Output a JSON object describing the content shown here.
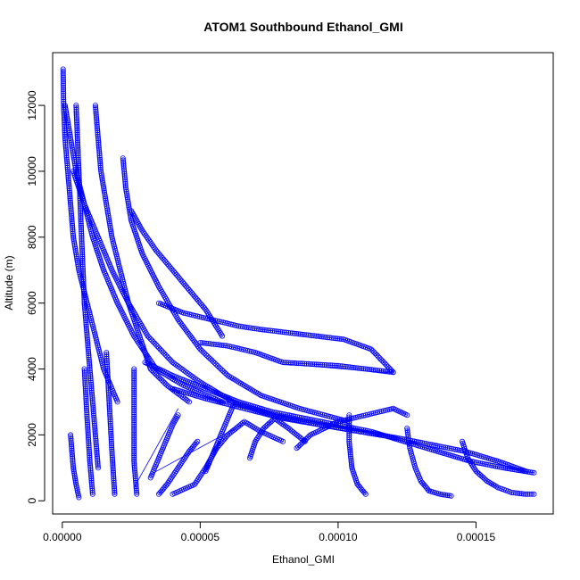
{
  "chart_data": {
    "type": "scatter",
    "title": "ATOM1 Southbound Ethanol_GMI",
    "xlabel": "Ethanol_GMI",
    "ylabel": "Altitude (m)",
    "xlim": [
      -3.5e-06,
      0.000178
    ],
    "ylim": [
      -400,
      13600
    ],
    "x_ticks": [
      0,
      5e-05,
      0.0001,
      0.00015
    ],
    "x_tick_labels": [
      "0.00000",
      "0.00005",
      "0.00010",
      "0.00015"
    ],
    "y_ticks": [
      0,
      2000,
      4000,
      6000,
      8000,
      10000,
      12000
    ],
    "y_tick_labels": [
      "0",
      "2000",
      "4000",
      "6000",
      "8000",
      "10000",
      "12000"
    ],
    "grid": false,
    "legend": "none",
    "marker": "open-circle",
    "color": "#0000ff",
    "series": [
      {
        "x": [
          3e-07,
          5e-07,
          1e-06,
          2e-06,
          3e-06,
          4e-06,
          6e-06,
          9e-06,
          1.2e-05,
          1.5e-05,
          2e-05
        ],
        "y": [
          13100,
          12000,
          11000,
          10000,
          9000,
          8000,
          7000,
          6000,
          5000,
          4000,
          3000
        ]
      },
      {
        "x": [
          1e-06,
          3e-06,
          5e-06,
          8e-06,
          1.1e-05,
          1.5e-05,
          2e-05,
          2.6e-05,
          3.4e-05,
          4.4e-05,
          5.8e-05
        ],
        "y": [
          12000,
          11000,
          10000,
          9000,
          8000,
          7000,
          6000,
          5000,
          4000,
          3500,
          3000
        ]
      },
      {
        "x": [
          5e-06,
          6e-06,
          7e-06,
          8e-06,
          9e-06,
          1e-05,
          1.1e-05,
          1.2e-05,
          1.3e-05
        ],
        "y": [
          12000,
          10000,
          8000,
          6000,
          5000,
          4000,
          3000,
          2000,
          1000
        ]
      },
      {
        "x": [
          1.2e-05,
          1.3e-05,
          1.4e-05,
          1.6e-05,
          1.8e-05,
          2.1e-05,
          2.4e-05,
          2.8e-05,
          3.2e-05,
          3.8e-05,
          4.6e-05
        ],
        "y": [
          12000,
          11000,
          10000,
          9000,
          8000,
          7000,
          6000,
          5000,
          4000,
          3500,
          3000
        ]
      },
      {
        "x": [
          4e-06,
          8e-06,
          1.3e-05,
          1.8e-05,
          2.4e-05,
          3.1e-05,
          4e-05,
          5e-05,
          6.2e-05,
          7.6e-05,
          9.4e-05,
          0.000115
        ],
        "y": [
          10000,
          9000,
          8000,
          7000,
          6000,
          5000,
          4200,
          3600,
          3000,
          2600,
          2300,
          2000
        ]
      },
      {
        "x": [
          2.2e-05,
          2.3e-05,
          2.5e-05,
          2.9e-05,
          3.5e-05,
          4.2e-05,
          5e-05,
          6e-05,
          7.2e-05,
          8.6e-05,
          0.000104
        ],
        "y": [
          10400,
          9500,
          8500,
          7500,
          6500,
          5500,
          4600,
          3800,
          3200,
          2800,
          2400
        ]
      },
      {
        "x": [
          2.5e-05,
          2.9e-05,
          3.4e-05,
          4e-05,
          4.6e-05,
          5.2e-05,
          5.8e-05
        ],
        "y": [
          8800,
          8200,
          7600,
          7000,
          6400,
          5800,
          5000
        ]
      },
      {
        "x": [
          3.5e-05,
          4.4e-05,
          5.4e-05,
          6.4e-05,
          7.2e-05,
          8.2e-05,
          9.2e-05,
          0.000102,
          0.000112,
          0.00012
        ],
        "y": [
          6000,
          5700,
          5500,
          5300,
          5200,
          5100,
          5000,
          4900,
          4600,
          3900
        ]
      },
      {
        "x": [
          5e-05,
          6e-05,
          7e-05,
          8e-05,
          0.0001,
          0.00012
        ],
        "y": [
          4800,
          4700,
          4500,
          4200,
          4100,
          3900
        ]
      },
      {
        "x": [
          3e-05,
          4e-05,
          5.2e-05,
          6.4e-05,
          7.6e-05,
          8.8e-05,
          0.0001,
          0.000112,
          0.000124,
          0.000136,
          0.000148,
          0.00016,
          0.000171
        ],
        "y": [
          4200,
          3800,
          3400,
          3000,
          2700,
          2500,
          2300,
          2100,
          1800,
          1500,
          1200,
          1000,
          850
        ]
      },
      {
        "x": [
          4e-05,
          5.2e-05,
          6.6e-05,
          8e-05,
          9.4e-05,
          0.000108,
          0.000122,
          0.000134,
          0.000146,
          0.000158,
          0.000168
        ],
        "y": [
          3400,
          3100,
          2800,
          2500,
          2300,
          2100,
          1900,
          1700,
          1500,
          1200,
          900
        ]
      },
      {
        "x": [
          0.000104,
          0.000104,
          0.000105,
          0.000107,
          0.00011
        ],
        "y": [
          2600,
          1800,
          1000,
          500,
          200
        ]
      },
      {
        "x": [
          0.000125,
          0.000126,
          0.000128,
          0.00013,
          0.000133,
          0.000137,
          0.000141
        ],
        "y": [
          2200,
          1600,
          1000,
          600,
          300,
          200,
          150
        ]
      },
      {
        "x": [
          0.000145,
          0.000147,
          0.00015,
          0.000154,
          0.000158,
          0.000163,
          0.000168,
          0.000171
        ],
        "y": [
          1800,
          1300,
          900,
          600,
          400,
          250,
          200,
          200
        ]
      },
      {
        "x": [
          3e-06,
          4e-06,
          5e-06,
          6e-06
        ],
        "y": [
          2000,
          1000,
          500,
          100
        ]
      },
      {
        "x": [
          8e-06,
          9e-06,
          1e-05,
          1.1e-05
        ],
        "y": [
          4000,
          2500,
          1200,
          200
        ]
      },
      {
        "x": [
          1.6e-05,
          1.7e-05,
          1.8e-05,
          1.9e-05
        ],
        "y": [
          4500,
          3000,
          1500,
          200
        ]
      },
      {
        "x": [
          2.6e-05,
          2.6e-05,
          2.6e-05,
          2.7e-05
        ],
        "y": [
          4000,
          2500,
          1200,
          200
        ]
      },
      {
        "x": [
          3.5e-05,
          3.8e-05,
          4.2e-05,
          4.6e-05,
          4.9e-05
        ],
        "y": [
          200,
          500,
          1000,
          1500,
          1800
        ]
      },
      {
        "x": [
          4e-05,
          4.4e-05,
          4.8e-05,
          5.2e-05,
          5.6e-05,
          6e-05,
          6.6e-05,
          7.2e-05,
          8e-05
        ],
        "y": [
          200,
          350,
          500,
          1000,
          1600,
          2000,
          2400,
          2100,
          1800
        ]
      },
      {
        "x": [
          3.2e-05,
          3.4e-05,
          3.6e-05,
          3.8e-05,
          4e-05,
          4.2e-05
        ],
        "y": [
          700,
          1100,
          1500,
          1900,
          2300,
          2600
        ]
      },
      {
        "x": [
          5.2e-05,
          5.4e-05,
          5.6e-05,
          5.8e-05,
          6e-05,
          6.2e-05
        ],
        "y": [
          900,
          1300,
          1700,
          2100,
          2500,
          2900
        ]
      },
      {
        "x": [
          6.8e-05,
          7e-05,
          7.3e-05,
          7.7e-05,
          8.2e-05,
          8.8e-05
        ],
        "y": [
          1300,
          1800,
          2200,
          2500,
          2200,
          1800
        ]
      },
      {
        "x": [
          8.5e-05,
          9e-05,
          9.5e-05,
          0.0001,
          0.000105,
          0.00011,
          0.000115,
          0.00012,
          0.000125
        ],
        "y": [
          1600,
          2000,
          2200,
          2400,
          2500,
          2600,
          2700,
          2800,
          2600
        ]
      }
    ],
    "lines": [
      {
        "x": [
          8.1e-05,
          0.000119
        ],
        "y": [
          4150,
          3880
        ]
      },
      {
        "x": [
          3.2e-05,
          6.5e-05
        ],
        "y": [
          800,
          2300
        ]
      },
      {
        "x": [
          2.6e-05,
          4.2e-05
        ],
        "y": [
          400,
          2800
        ]
      }
    ]
  }
}
